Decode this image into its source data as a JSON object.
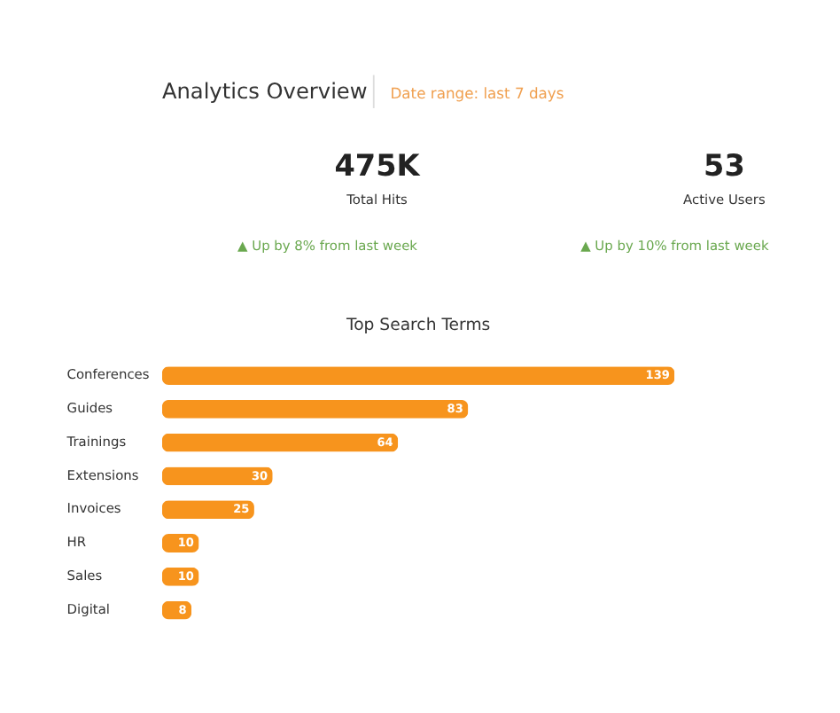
{
  "chart_data": [
    {
      "type": "other",
      "title": "Analytics Overview",
      "subtitle": "Date range: last 7 days",
      "annotations": [
        "475K",
        "Total Hits",
        "▲ Up by 8% from last week",
        "53",
        "Active Users",
        "▲ Up by 10% from last week"
      ]
    },
    {
      "type": "bar",
      "title": "Top Search Terms",
      "orientation": "horizontal",
      "categories": [
        "Conferences",
        "Guides",
        "Trainings",
        "Extensions",
        "Invoices",
        "HR",
        "Sales",
        "Digital"
      ],
      "values": [
        139,
        83,
        64,
        30,
        25,
        10,
        10,
        8
      ],
      "color": "#f7941d",
      "data_labels": true
    }
  ]
}
